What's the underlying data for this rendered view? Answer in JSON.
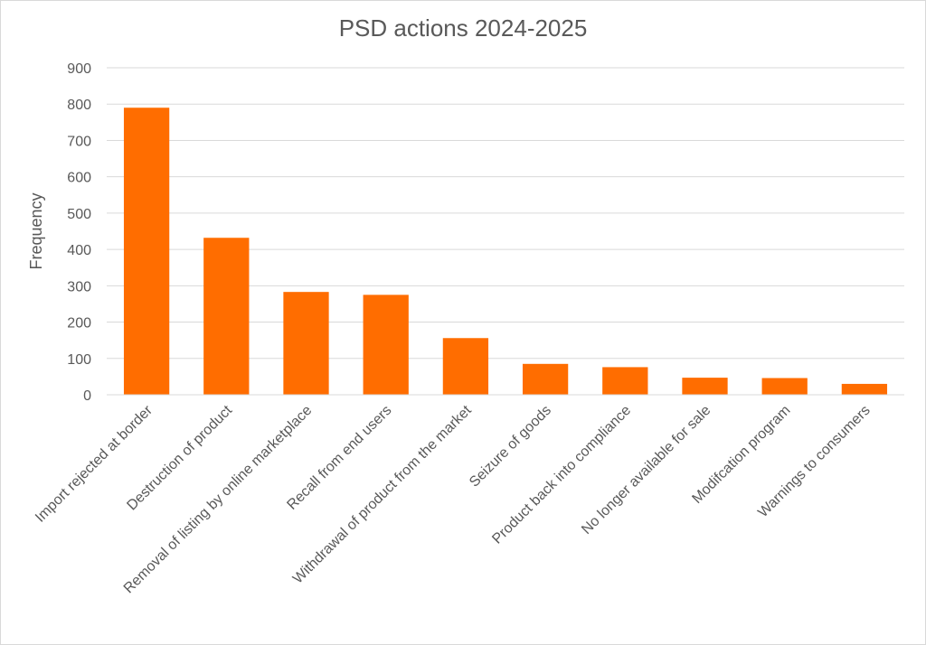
{
  "chart_data": {
    "type": "bar",
    "title": "PSD actions 2024-2025",
    "xlabel": "",
    "ylabel": "Frequency",
    "ylim": [
      0,
      900
    ],
    "yticks": [
      0,
      100,
      200,
      300,
      400,
      500,
      600,
      700,
      800,
      900
    ],
    "grid": true,
    "legend": "none",
    "bar_color": "#ff6d00",
    "categories": [
      "Import rejected at border",
      "Destruction of product",
      "Removal of listing by online marketplace",
      "Recall from end users",
      "Withdrawal of product from the market",
      "Seizure of goods",
      "Product back into compliance",
      "No longer available for sale",
      "Modifcation program",
      "Warnings to consumers"
    ],
    "values": [
      790,
      432,
      283,
      275,
      156,
      85,
      76,
      47,
      46,
      30
    ]
  }
}
